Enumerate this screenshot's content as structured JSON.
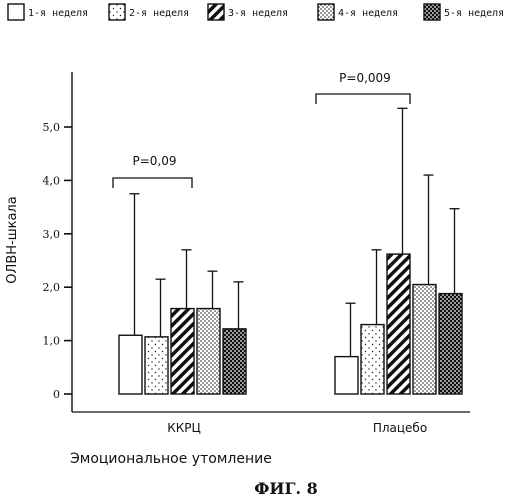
{
  "figure_caption": "ФИГ. 8",
  "chart_data": {
    "type": "bar",
    "xlabel": "Эмоциональное утомление",
    "ylabel": "ОЛВН-шкала",
    "ylim": [
      0,
      6
    ],
    "yticks": [
      "0",
      "1,0",
      "2,0",
      "3,0",
      "4,0",
      "5,0"
    ],
    "categories": [
      "ККРЦ",
      "Плацебо"
    ],
    "series": [
      {
        "name": "1-я неделя",
        "pattern": "blank",
        "values": [
          1.1,
          0.7
        ],
        "error_upper": [
          3.75,
          1.7
        ]
      },
      {
        "name": "2-я неделя",
        "pattern": "sparse",
        "values": [
          1.07,
          1.3
        ],
        "error_upper": [
          2.15,
          2.7
        ]
      },
      {
        "name": "3-я неделя",
        "pattern": "hatch",
        "values": [
          1.6,
          2.62
        ],
        "error_upper": [
          2.7,
          5.35
        ]
      },
      {
        "name": "4-я неделя",
        "pattern": "dotted",
        "values": [
          1.6,
          2.05
        ],
        "error_upper": [
          2.3,
          4.1
        ]
      },
      {
        "name": "5-я неделя",
        "pattern": "dense",
        "values": [
          1.22,
          1.88
        ],
        "error_upper": [
          2.1,
          3.47
        ]
      }
    ],
    "annotations": [
      {
        "group": 0,
        "text": "P=0,09"
      },
      {
        "group": 1,
        "text": "P=0,009"
      }
    ],
    "legend_position": "top"
  }
}
